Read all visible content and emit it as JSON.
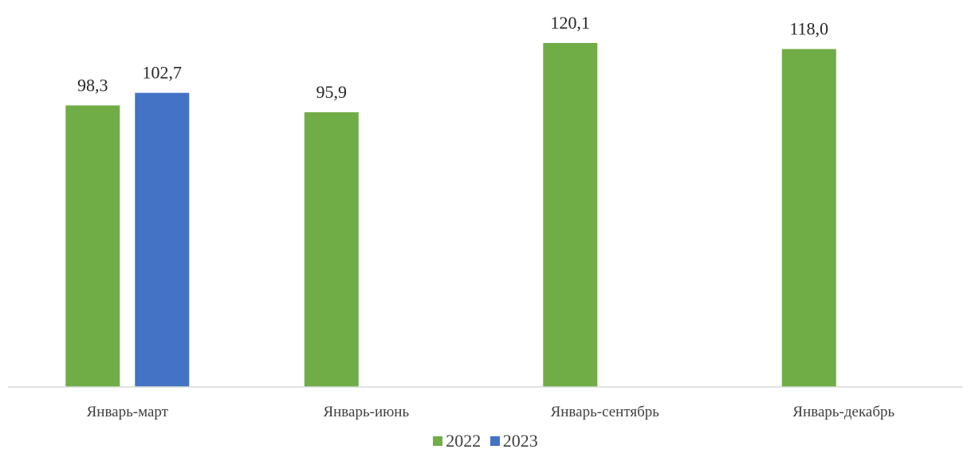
{
  "chart_data": {
    "type": "bar",
    "categories": [
      "Январь-март",
      "Январь-июнь",
      "Январь-сентябрь",
      "Январь-декабрь"
    ],
    "series": [
      {
        "name": "2022",
        "color": "#70AD47",
        "values": [
          98.3,
          95.9,
          120.1,
          118.0
        ],
        "labels": [
          "98,3",
          "95,9",
          "120,1",
          "118,0"
        ]
      },
      {
        "name": "2023",
        "color": "#4472C4",
        "values": [
          102.7,
          null,
          null,
          null
        ],
        "labels": [
          "102,7",
          null,
          null,
          null
        ]
      }
    ],
    "ylim": [
      0,
      125
    ],
    "grid": false,
    "legend_position": "bottom"
  }
}
